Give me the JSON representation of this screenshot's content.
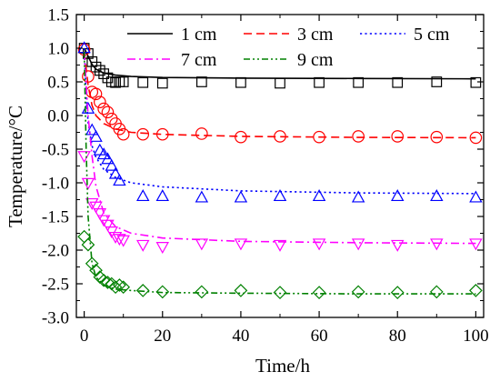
{
  "chart_data": {
    "type": "line",
    "xlabel": "Time/h",
    "ylabel": "Temperature/°C",
    "xlim": [
      -2,
      102
    ],
    "ylim": [
      -3.0,
      1.5
    ],
    "xticks": [
      0,
      20,
      40,
      60,
      80,
      100
    ],
    "yticks": [
      1.5,
      1.0,
      0.5,
      0.0,
      -0.5,
      -1.0,
      -1.5,
      -2.0,
      -2.5,
      -3.0
    ],
    "ytick_labels": [
      "1.5",
      "1.0",
      "0.5",
      "0.0",
      "-0.5",
      "-1.0",
      "-1.5",
      "-2.0",
      "-2.5",
      "-3.0"
    ],
    "legend_position": "top",
    "series": [
      {
        "name": "1 cm",
        "color": "#000000",
        "line_style": "solid",
        "marker": "square",
        "line": [
          [
            0,
            1.0
          ],
          [
            1,
            0.88
          ],
          [
            2,
            0.76
          ],
          [
            3,
            0.69
          ],
          [
            5,
            0.63
          ],
          [
            8,
            0.6
          ],
          [
            12,
            0.58
          ],
          [
            20,
            0.565
          ],
          [
            40,
            0.555
          ],
          [
            70,
            0.55
          ],
          [
            100,
            0.545
          ]
        ],
        "points": [
          [
            0,
            1.0
          ],
          [
            1,
            0.92
          ],
          [
            2,
            0.8
          ],
          [
            3,
            0.72
          ],
          [
            4,
            0.67
          ],
          [
            5,
            0.62
          ],
          [
            6,
            0.56
          ],
          [
            7,
            0.5
          ],
          [
            8,
            0.49
          ],
          [
            9,
            0.5
          ],
          [
            10,
            0.5
          ],
          [
            15,
            0.49
          ],
          [
            20,
            0.48
          ],
          [
            30,
            0.5
          ],
          [
            40,
            0.49
          ],
          [
            50,
            0.48
          ],
          [
            60,
            0.49
          ],
          [
            70,
            0.49
          ],
          [
            80,
            0.49
          ],
          [
            90,
            0.5
          ],
          [
            100,
            0.49
          ]
        ]
      },
      {
        "name": "3 cm",
        "color": "#ff0000",
        "line_style": "dashed",
        "marker": "circle",
        "line": [
          [
            0,
            0.95
          ],
          [
            1,
            0.45
          ],
          [
            2,
            0.15
          ],
          [
            3,
            0.0
          ],
          [
            5,
            -0.12
          ],
          [
            8,
            -0.2
          ],
          [
            12,
            -0.25
          ],
          [
            20,
            -0.28
          ],
          [
            40,
            -0.31
          ],
          [
            70,
            -0.325
          ],
          [
            100,
            -0.33
          ]
        ],
        "points": [
          [
            0,
            0.98
          ],
          [
            1,
            0.58
          ],
          [
            2,
            0.35
          ],
          [
            3,
            0.32
          ],
          [
            4,
            0.2
          ],
          [
            5,
            0.1
          ],
          [
            6,
            0.05
          ],
          [
            7,
            -0.05
          ],
          [
            8,
            -0.12
          ],
          [
            9,
            -0.2
          ],
          [
            10,
            -0.28
          ],
          [
            15,
            -0.28
          ],
          [
            20,
            -0.28
          ],
          [
            30,
            -0.27
          ],
          [
            40,
            -0.32
          ],
          [
            50,
            -0.31
          ],
          [
            60,
            -0.32
          ],
          [
            70,
            -0.31
          ],
          [
            80,
            -0.31
          ],
          [
            90,
            -0.32
          ],
          [
            100,
            -0.33
          ]
        ]
      },
      {
        "name": "5 cm",
        "color": "#0000ff",
        "line_style": "dotted",
        "marker": "triangle-up",
        "line": [
          [
            0,
            1.0
          ],
          [
            0.5,
            0.3
          ],
          [
            1,
            -0.1
          ],
          [
            2,
            -0.45
          ],
          [
            3,
            -0.62
          ],
          [
            5,
            -0.8
          ],
          [
            8,
            -0.92
          ],
          [
            12,
            -1.0
          ],
          [
            20,
            -1.06
          ],
          [
            40,
            -1.12
          ],
          [
            70,
            -1.15
          ],
          [
            100,
            -1.16
          ]
        ],
        "points": [
          [
            0,
            1.0
          ],
          [
            1,
            0.1
          ],
          [
            2,
            -0.22
          ],
          [
            3,
            -0.32
          ],
          [
            4,
            -0.52
          ],
          [
            5,
            -0.58
          ],
          [
            6,
            -0.65
          ],
          [
            7,
            -0.75
          ],
          [
            8,
            -0.87
          ],
          [
            9,
            -0.97
          ],
          [
            15,
            -1.2
          ],
          [
            20,
            -1.2
          ],
          [
            30,
            -1.22
          ],
          [
            40,
            -1.22
          ],
          [
            50,
            -1.2
          ],
          [
            60,
            -1.2
          ],
          [
            70,
            -1.22
          ],
          [
            80,
            -1.2
          ],
          [
            90,
            -1.2
          ],
          [
            100,
            -1.22
          ]
        ]
      },
      {
        "name": "7 cm",
        "color": "#ff00ff",
        "line_style": "dash-dot",
        "marker": "triangle-down",
        "line": [
          [
            0,
            0.95
          ],
          [
            1,
            0.0
          ],
          [
            2,
            -0.6
          ],
          [
            3,
            -1.05
          ],
          [
            5,
            -1.45
          ],
          [
            8,
            -1.65
          ],
          [
            12,
            -1.75
          ],
          [
            20,
            -1.82
          ],
          [
            40,
            -1.87
          ],
          [
            70,
            -1.89
          ],
          [
            100,
            -1.9
          ]
        ],
        "points": [
          [
            0,
            -0.6
          ],
          [
            1,
            -1.0
          ],
          [
            2,
            -1.3
          ],
          [
            3,
            -1.35
          ],
          [
            4,
            -1.45
          ],
          [
            5,
            -1.55
          ],
          [
            6,
            -1.62
          ],
          [
            7,
            -1.72
          ],
          [
            8,
            -1.8
          ],
          [
            9,
            -1.83
          ],
          [
            10,
            -1.85
          ],
          [
            15,
            -1.92
          ],
          [
            20,
            -1.95
          ],
          [
            30,
            -1.9
          ],
          [
            40,
            -1.9
          ],
          [
            50,
            -1.92
          ],
          [
            60,
            -1.9
          ],
          [
            70,
            -1.9
          ],
          [
            80,
            -1.92
          ],
          [
            90,
            -1.9
          ],
          [
            100,
            -1.9
          ]
        ]
      },
      {
        "name": "9 cm",
        "color": "#008000",
        "line_style": "dash-dot-dot",
        "marker": "diamond",
        "line": [
          [
            0,
            0.95
          ],
          [
            0.5,
            -0.5
          ],
          [
            1,
            -1.5
          ],
          [
            2,
            -2.2
          ],
          [
            3,
            -2.4
          ],
          [
            5,
            -2.52
          ],
          [
            8,
            -2.58
          ],
          [
            12,
            -2.6
          ],
          [
            20,
            -2.63
          ],
          [
            40,
            -2.64
          ],
          [
            70,
            -2.65
          ],
          [
            100,
            -2.65
          ]
        ],
        "points": [
          [
            0,
            -1.8
          ],
          [
            1,
            -1.92
          ],
          [
            2,
            -2.2
          ],
          [
            3,
            -2.3
          ],
          [
            4,
            -2.4
          ],
          [
            5,
            -2.45
          ],
          [
            6,
            -2.48
          ],
          [
            7,
            -2.5
          ],
          [
            8,
            -2.55
          ],
          [
            9,
            -2.52
          ],
          [
            10,
            -2.55
          ],
          [
            15,
            -2.6
          ],
          [
            20,
            -2.62
          ],
          [
            30,
            -2.62
          ],
          [
            40,
            -2.6
          ],
          [
            50,
            -2.63
          ],
          [
            60,
            -2.63
          ],
          [
            70,
            -2.62
          ],
          [
            80,
            -2.63
          ],
          [
            90,
            -2.62
          ],
          [
            100,
            -2.6
          ]
        ]
      }
    ]
  }
}
